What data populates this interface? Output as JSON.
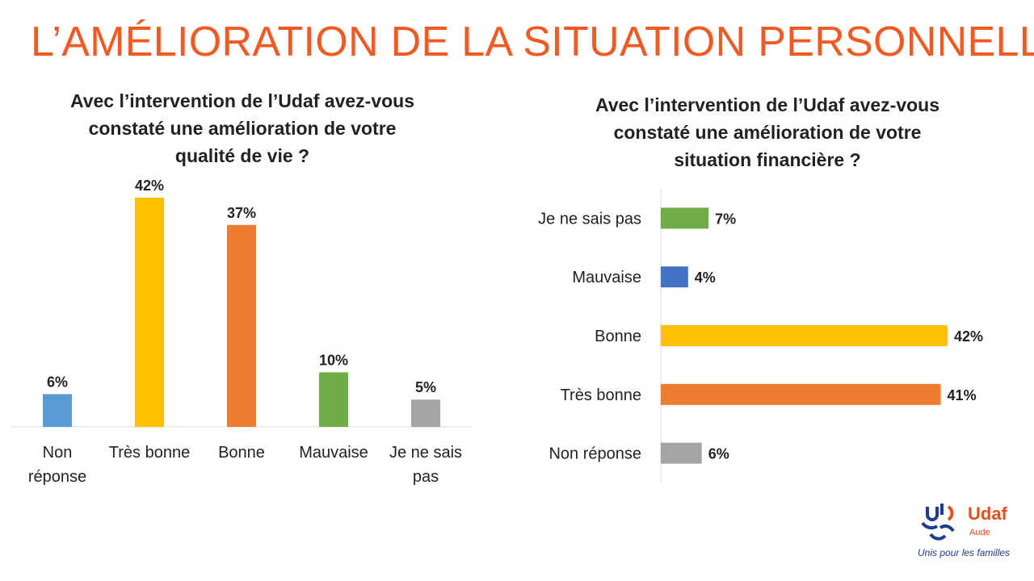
{
  "page": {
    "title": "L’AMÉLIORATION DE LA SITUATION PERSONNELLE"
  },
  "logo": {
    "brand": "Udaf",
    "sub": "Aude",
    "tagline": "Unis pour les familles"
  },
  "chart_data": [
    {
      "type": "bar",
      "orientation": "vertical",
      "title_lines": [
        "Avec l’intervention de l’Udaf avez-vous",
        "constaté une amélioration de votre",
        "qualité de vie ?"
      ],
      "categories": [
        [
          "Non",
          "réponse"
        ],
        [
          "Très bonne"
        ],
        [
          "Bonne"
        ],
        [
          "Mauvaise"
        ],
        [
          "Je ne sais",
          "pas"
        ]
      ],
      "values": [
        6,
        42,
        37,
        10,
        5
      ],
      "value_labels": [
        "6%",
        "42%",
        "37%",
        "10%",
        "5%"
      ],
      "colors": [
        "#5b9bd5",
        "#ffc000",
        "#ed7d31",
        "#70ad47",
        "#a5a5a5"
      ],
      "ylim": [
        0,
        42
      ],
      "grid": false,
      "legend": "none"
    },
    {
      "type": "bar",
      "orientation": "horizontal",
      "title_lines": [
        "Avec l’intervention de l’Udaf avez-vous",
        "constaté une amélioration de votre",
        "situation financière ?"
      ],
      "categories": [
        "Je ne sais pas",
        "Mauvaise",
        "Bonne",
        "Très bonne",
        "Non réponse"
      ],
      "values": [
        7,
        4,
        42,
        41,
        6
      ],
      "value_labels": [
        "7%",
        "4%",
        "42%",
        "41%",
        "6%"
      ],
      "colors": [
        "#70ad47",
        "#4472c4",
        "#ffc000",
        "#ed7d31",
        "#a5a5a5"
      ],
      "xlim": [
        0,
        42
      ],
      "grid": false,
      "legend": "none"
    }
  ]
}
